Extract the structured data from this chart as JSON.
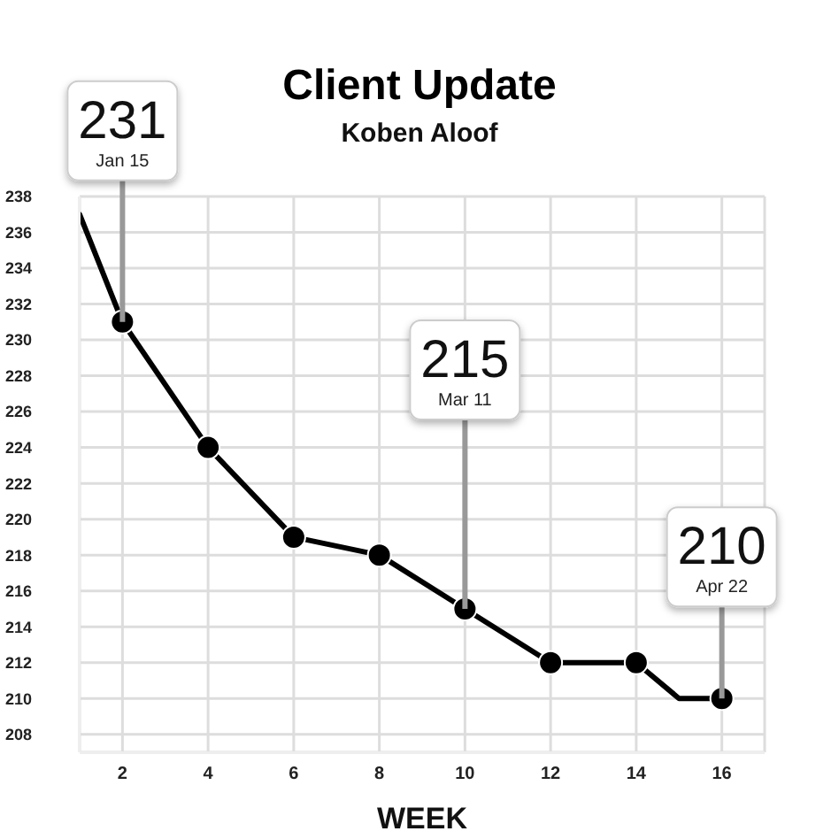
{
  "chart_data": {
    "type": "line",
    "title": "Client Update",
    "subtitle": "Koben Aloof",
    "xlabel": "WEEK",
    "series": [
      {
        "color": "#000000",
        "marker": "none",
        "x": [
          1,
          2,
          4,
          6,
          8,
          10,
          12,
          14,
          15,
          16
        ],
        "values": [
          237,
          231,
          224,
          219,
          218,
          215,
          212,
          212,
          210,
          210
        ]
      },
      {
        "type": "scatter",
        "color": "#000000",
        "marker": "circle",
        "x": [
          2,
          4,
          6,
          8,
          10,
          12,
          14,
          16
        ],
        "values": [
          231,
          224,
          219,
          218,
          215,
          212,
          212,
          210
        ]
      }
    ],
    "xlim": [
      1,
      17
    ],
    "xticks": [
      2,
      4,
      6,
      8,
      10,
      12,
      14,
      16
    ],
    "ylim": [
      207,
      238
    ],
    "yticks": [
      208,
      210,
      212,
      214,
      216,
      218,
      220,
      222,
      224,
      226,
      228,
      230,
      232,
      234,
      236,
      238
    ],
    "grid": true,
    "annotations": [
      {
        "text": "231\nJan 15",
        "x": 2,
        "y": 231
      },
      {
        "text": "215\nMar 11",
        "x": 10,
        "y": 215
      },
      {
        "text": "210\nApr 22",
        "x": 16,
        "y": 210
      }
    ]
  }
}
